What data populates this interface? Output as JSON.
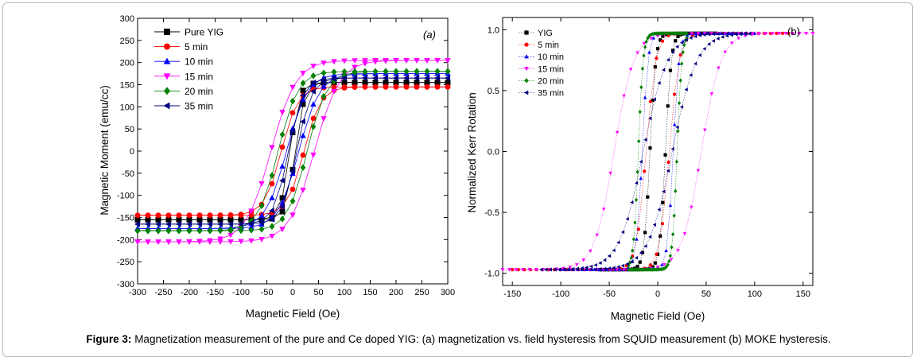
{
  "caption": {
    "label": "Figure 3:",
    "text": " Magnetization measurement of the pure and Ce doped YIG: (a) magnetization vs. field hysteresis from SQUID measurement (b) MOKE hysteresis."
  },
  "chart_data": [
    {
      "type": "line",
      "panel_tag": "(a)",
      "xlabel": "Magnetic Field (Oe)",
      "ylabel": "Magnetic Moment (emu/cc)",
      "xlim": [
        -300,
        300
      ],
      "ylim": [
        -300,
        300
      ],
      "xticks": [
        -300,
        -250,
        -200,
        -150,
        -100,
        -50,
        0,
        50,
        100,
        150,
        200,
        250,
        300
      ],
      "yticks": [
        -300,
        -250,
        -200,
        -150,
        -100,
        -50,
        0,
        50,
        100,
        150,
        200,
        250,
        300
      ],
      "grid": false,
      "legend_position": "top-left",
      "series": [
        {
          "name": "Pure YIG",
          "marker": "square",
          "color": "#000000",
          "ms": 155,
          "hc": 5,
          "w": 18
        },
        {
          "name": "5 min",
          "marker": "circle",
          "color": "#ff0000",
          "ms": 145,
          "hc": 22,
          "w": 32
        },
        {
          "name": "10 min",
          "marker": "triangle-up",
          "color": "#0000ff",
          "ms": 175,
          "hc": 12,
          "w": 40
        },
        {
          "name": "15 min",
          "marker": "triangle-down",
          "color": "#ff00ff",
          "ms": 205,
          "hc": 42,
          "w": 48
        },
        {
          "name": "20 min",
          "marker": "diamond",
          "color": "#008000",
          "ms": 180,
          "hc": 28,
          "w": 38
        },
        {
          "name": "35 min",
          "marker": "triangle-left",
          "color": "#000080",
          "ms": 165,
          "hc": 8,
          "w": 28
        }
      ]
    },
    {
      "type": "scatter",
      "panel_tag": "(b)",
      "xlabel": "Magnetic Field (Oe)",
      "ylabel": "Normalized Kerr Rotation",
      "xlim": [
        -160,
        160
      ],
      "ylim": [
        -1.1,
        1.1
      ],
      "xticks": [
        -150,
        -100,
        -50,
        0,
        50,
        100,
        150
      ],
      "yticks": [
        -1.0,
        -0.5,
        0.0,
        0.5,
        1.0
      ],
      "ytick_labels": [
        "-1.0",
        "-0.5",
        "0.0",
        "0.5",
        "1.0"
      ],
      "grid": false,
      "legend_position": "top-left",
      "series": [
        {
          "name": "YIG",
          "marker": "square",
          "color": "#000000",
          "hc": 8,
          "w": 6,
          "xr": [
            -60,
            60
          ]
        },
        {
          "name": "5 min",
          "marker": "circle",
          "color": "#ff0000",
          "hc": 12,
          "w": 10,
          "xr": [
            -150,
            135
          ]
        },
        {
          "name": "10 min",
          "marker": "triangle-up",
          "color": "#0000ff",
          "hc": 16,
          "w": 6,
          "xr": [
            -100,
            100
          ]
        },
        {
          "name": "15 min",
          "marker": "triangle-down",
          "color": "#ff00ff",
          "hc": 45,
          "w": 20,
          "xr": [
            -160,
            160
          ]
        },
        {
          "name": "20 min",
          "marker": "diamond",
          "color": "#008000",
          "hc": 20,
          "w": 5,
          "xr": [
            -30,
            30
          ]
        },
        {
          "name": "35 min",
          "marker": "triangle-left",
          "color": "#000080",
          "hc": 15,
          "w": 25,
          "xr": [
            -120,
            95
          ]
        }
      ]
    }
  ]
}
